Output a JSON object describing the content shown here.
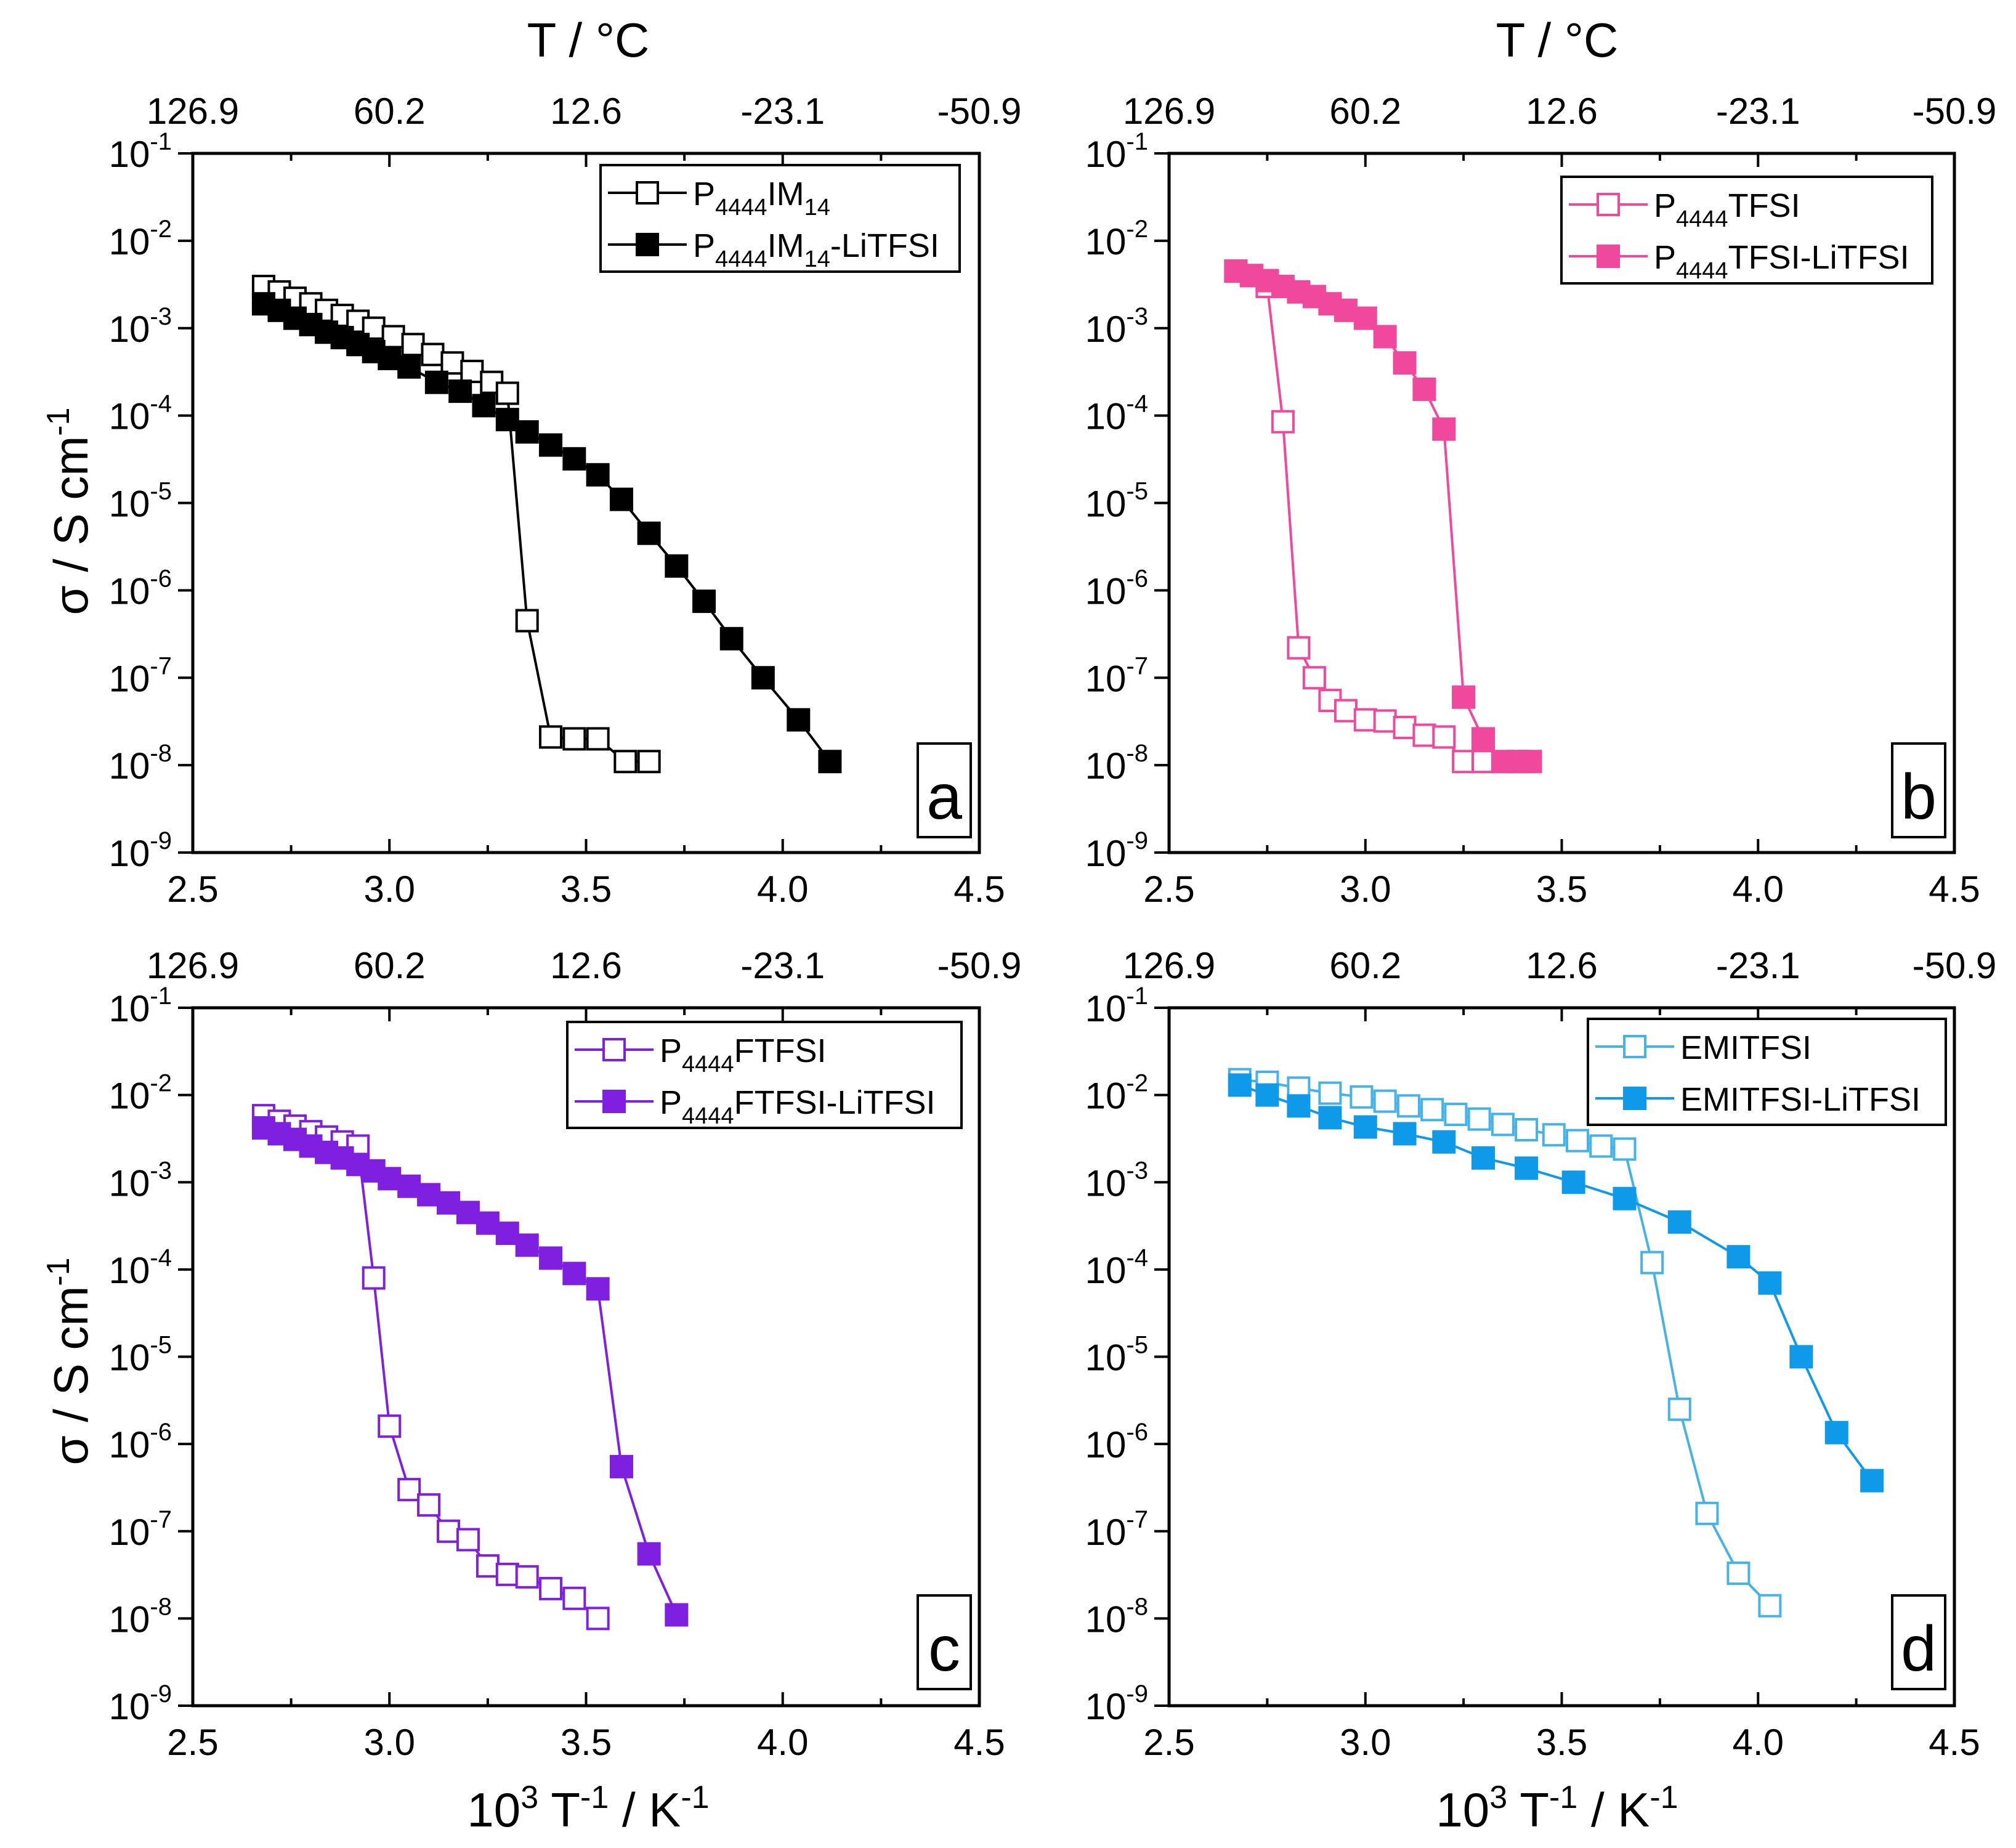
{
  "figure": {
    "top_axis_title": "T / °C",
    "y_axis_title_base": "σ / S cm",
    "y_axis_title_exp": "-1",
    "x_axis_title_10": "10",
    "x_axis_title_3": "3",
    "x_axis_title_T": " T",
    "x_axis_title_Texp": "-1",
    "x_axis_title_K": " / K",
    "x_axis_title_Kexp": "-1"
  },
  "chart_data": [
    {
      "panel": "a",
      "type": "scatter",
      "x_scale": "linear",
      "y_scale": "log",
      "xlim": [
        2.5,
        4.5
      ],
      "ylim": [
        1e-09,
        0.1
      ],
      "x_ticks": [
        "2.5",
        "3.0",
        "3.5",
        "4.0",
        "4.5"
      ],
      "top_ticks": [
        "126.9",
        "60.2",
        "12.6",
        "-23.1",
        "-50.9"
      ],
      "top_axis_title": "T / °C",
      "legend_position": "top-right",
      "series": [
        {
          "name_parts": [
            [
              "P",
              "n"
            ],
            [
              "4444",
              "s"
            ],
            [
              "IM",
              "n"
            ],
            [
              "14",
              "s"
            ]
          ],
          "color": "#000000",
          "marker": "open-square",
          "x": [
            2.68,
            2.72,
            2.76,
            2.8,
            2.84,
            2.88,
            2.92,
            2.96,
            3.01,
            3.06,
            3.11,
            3.16,
            3.21,
            3.26,
            3.3,
            3.35,
            3.41,
            3.47,
            3.53,
            3.6,
            3.66
          ],
          "y": [
            0.003,
            0.0026,
            0.0022,
            0.0019,
            0.0016,
            0.0014,
            0.0012,
            0.001,
            0.0008,
            0.00065,
            0.0005,
            0.0004,
            0.00032,
            0.00024,
            0.00018,
            4.5e-07,
            2.1e-08,
            2e-08,
            2e-08,
            1.1e-08,
            1.1e-08
          ]
        },
        {
          "name_parts": [
            [
              "P",
              "n"
            ],
            [
              "4444",
              "s"
            ],
            [
              "IM",
              "n"
            ],
            [
              "14",
              "s"
            ],
            [
              "-LiTFSI",
              "n"
            ]
          ],
          "color": "#000000",
          "marker": "filled-square",
          "x": [
            2.68,
            2.72,
            2.76,
            2.8,
            2.84,
            2.88,
            2.92,
            2.96,
            3.0,
            3.05,
            3.12,
            3.18,
            3.24,
            3.3,
            3.35,
            3.41,
            3.47,
            3.53,
            3.59,
            3.66,
            3.73,
            3.8,
            3.87,
            3.95,
            4.04,
            4.12
          ],
          "y": [
            0.0019,
            0.0016,
            0.0013,
            0.0011,
            0.0009,
            0.00078,
            0.00065,
            0.00054,
            0.00045,
            0.00036,
            0.00024,
            0.00019,
            0.00013,
            9e-05,
            6.5e-05,
            4.6e-05,
            3.2e-05,
            2.1e-05,
            1.1e-05,
            4.5e-06,
            1.9e-06,
            7.5e-07,
            2.8e-07,
            1e-07,
            3.3e-08,
            1.1e-08
          ]
        }
      ]
    },
    {
      "panel": "b",
      "type": "scatter",
      "x_scale": "linear",
      "y_scale": "log",
      "xlim": [
        2.5,
        4.5
      ],
      "ylim": [
        1e-09,
        0.1
      ],
      "x_ticks": [
        "2.5",
        "3.0",
        "3.5",
        "4.0",
        "4.5"
      ],
      "top_ticks": [
        "126.9",
        "60.2",
        "12.6",
        "-23.1",
        "-50.9"
      ],
      "top_axis_title": "T / °C",
      "legend_position": "top-right",
      "series": [
        {
          "name_parts": [
            [
              "P",
              "n"
            ],
            [
              "4444",
              "s"
            ],
            [
              "TFSI",
              "n"
            ]
          ],
          "color": "#f0489c",
          "marker": "open-square",
          "x": [
            2.67,
            2.71,
            2.75,
            2.79,
            2.83,
            2.87,
            2.91,
            2.95,
            3.0,
            3.05,
            3.1,
            3.15,
            3.2,
            3.25,
            3.3
          ],
          "y": [
            0.0045,
            0.004,
            0.003,
            8.5e-05,
            2.2e-07,
            1e-07,
            5.5e-08,
            4.2e-08,
            3.3e-08,
            3.2e-08,
            2.7e-08,
            2.2e-08,
            2.1e-08,
            1.1e-08,
            1.1e-08
          ]
        },
        {
          "name_parts": [
            [
              "P",
              "n"
            ],
            [
              "4444",
              "s"
            ],
            [
              "TFSI-LiTFSI",
              "n"
            ]
          ],
          "color": "#f0489c",
          "marker": "filled-square",
          "x": [
            2.67,
            2.71,
            2.75,
            2.79,
            2.83,
            2.87,
            2.91,
            2.95,
            3.0,
            3.05,
            3.1,
            3.15,
            3.2,
            3.25,
            3.3,
            3.35,
            3.39,
            3.42
          ],
          "y": [
            0.0045,
            0.004,
            0.0035,
            0.003,
            0.0026,
            0.0023,
            0.0019,
            0.0016,
            0.0013,
            0.0008,
            0.0004,
            0.0002,
            7e-05,
            6e-08,
            2e-08,
            1.1e-08,
            1.1e-08,
            1.1e-08
          ]
        }
      ]
    },
    {
      "panel": "c",
      "type": "scatter",
      "x_scale": "linear",
      "y_scale": "log",
      "xlim": [
        2.5,
        4.5
      ],
      "ylim": [
        1e-09,
        0.1
      ],
      "x_ticks": [
        "2.5",
        "3.0",
        "3.5",
        "4.0",
        "4.5"
      ],
      "top_ticks": [
        "126.9",
        "60.2",
        "12.6",
        "-23.1",
        "-50.9"
      ],
      "legend_position": "top-right",
      "series": [
        {
          "name_parts": [
            [
              "P",
              "n"
            ],
            [
              "4444",
              "s"
            ],
            [
              "FTFSI",
              "n"
            ]
          ],
          "color": "#7f1fe0",
          "marker": "open-square",
          "x": [
            2.68,
            2.72,
            2.76,
            2.8,
            2.84,
            2.88,
            2.92,
            2.96,
            3.0,
            3.05,
            3.1,
            3.15,
            3.2,
            3.25,
            3.3,
            3.35,
            3.41,
            3.47,
            3.53
          ],
          "y": [
            0.0058,
            0.005,
            0.0044,
            0.0038,
            0.0033,
            0.0029,
            0.0026,
            8e-05,
            1.6e-06,
            3e-07,
            2e-07,
            1e-07,
            8e-08,
            4e-08,
            3.2e-08,
            3e-08,
            2.2e-08,
            1.7e-08,
            1e-08
          ]
        },
        {
          "name_parts": [
            [
              "P",
              "n"
            ],
            [
              "4444",
              "s"
            ],
            [
              "FTFSI-LiTFSI",
              "n"
            ]
          ],
          "color": "#7f1fe0",
          "marker": "filled-square",
          "x": [
            2.68,
            2.72,
            2.76,
            2.8,
            2.84,
            2.88,
            2.92,
            2.96,
            3.0,
            3.05,
            3.1,
            3.15,
            3.2,
            3.25,
            3.3,
            3.35,
            3.41,
            3.47,
            3.53,
            3.59,
            3.66,
            3.73
          ],
          "y": [
            0.0042,
            0.0036,
            0.0031,
            0.0026,
            0.0022,
            0.0019,
            0.0016,
            0.00135,
            0.0011,
            0.0009,
            0.00072,
            0.00058,
            0.00045,
            0.00034,
            0.00026,
            0.00019,
            0.000135,
            9e-05,
            6e-05,
            5.5e-07,
            5.5e-08,
            1.1e-08
          ]
        }
      ]
    },
    {
      "panel": "d",
      "type": "scatter",
      "x_scale": "linear",
      "y_scale": "log",
      "xlim": [
        2.5,
        4.5
      ],
      "ylim": [
        1e-09,
        0.1
      ],
      "x_ticks": [
        "2.5",
        "3.0",
        "3.5",
        "4.0",
        "4.5"
      ],
      "top_ticks": [
        "126.9",
        "60.2",
        "12.6",
        "-23.1",
        "-50.9"
      ],
      "legend_position": "top-right",
      "series": [
        {
          "name_parts": [
            [
              "EMITFSI",
              "n"
            ]
          ],
          "color": "#47b2e5",
          "marker": "open-square",
          "x": [
            2.68,
            2.75,
            2.83,
            2.91,
            2.99,
            3.05,
            3.11,
            3.17,
            3.23,
            3.29,
            3.35,
            3.41,
            3.48,
            3.54,
            3.6,
            3.66,
            3.73,
            3.8,
            3.87,
            3.95,
            4.03
          ],
          "y": [
            0.015,
            0.014,
            0.012,
            0.0105,
            0.0095,
            0.0085,
            0.0075,
            0.0068,
            0.006,
            0.0053,
            0.0046,
            0.004,
            0.0035,
            0.003,
            0.0026,
            0.0024,
            0.00012,
            2.5e-06,
            1.6e-07,
            3.3e-08,
            1.4e-08
          ]
        },
        {
          "name_parts": [
            [
              "EMITFSI-LiTFSI",
              "n"
            ]
          ],
          "color": "#0e9ae8",
          "marker": "filled-square",
          "x": [
            2.68,
            2.75,
            2.83,
            2.91,
            3.0,
            3.1,
            3.2,
            3.3,
            3.41,
            3.53,
            3.66,
            3.8,
            3.95,
            4.03,
            4.11,
            4.2,
            4.29
          ],
          "y": [
            0.013,
            0.01,
            0.0075,
            0.0055,
            0.0043,
            0.0036,
            0.0029,
            0.0019,
            0.00145,
            0.001,
            0.00065,
            0.00035,
            0.00014,
            7e-05,
            1e-05,
            1.35e-06,
            3.8e-07
          ]
        }
      ]
    }
  ]
}
